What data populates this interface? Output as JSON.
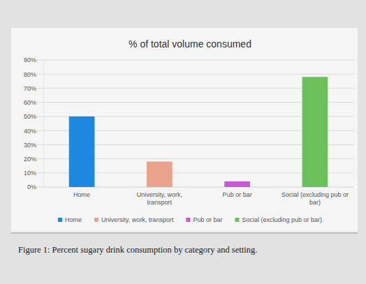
{
  "chart_data": {
    "type": "bar",
    "title": "% of total volume consumed",
    "categories": [
      "Home",
      "University, work, transport",
      "Pub or bar",
      "Social (excluding pub or bar)"
    ],
    "values": [
      50,
      18,
      4,
      78
    ],
    "colors": [
      "#1c88e0",
      "#e9a28c",
      "#c65ad2",
      "#6cc05c"
    ],
    "ylim": [
      0,
      90
    ],
    "yticks": [
      {
        "value": 0,
        "label": "0%"
      },
      {
        "value": 10,
        "label": "10%"
      },
      {
        "value": 20,
        "label": "20%"
      },
      {
        "value": 30,
        "label": "30%"
      },
      {
        "value": 40,
        "label": "40%"
      },
      {
        "value": 50,
        "label": "50%"
      },
      {
        "value": 60,
        "label": "60%"
      },
      {
        "value": 70,
        "label": "70%"
      },
      {
        "value": 80,
        "label": "80%"
      },
      {
        "value": 90,
        "label": "90%"
      }
    ],
    "grid": true,
    "legend": "bottom",
    "caption": "Figure 1: Percent sugary drink consumption by category and setting."
  }
}
